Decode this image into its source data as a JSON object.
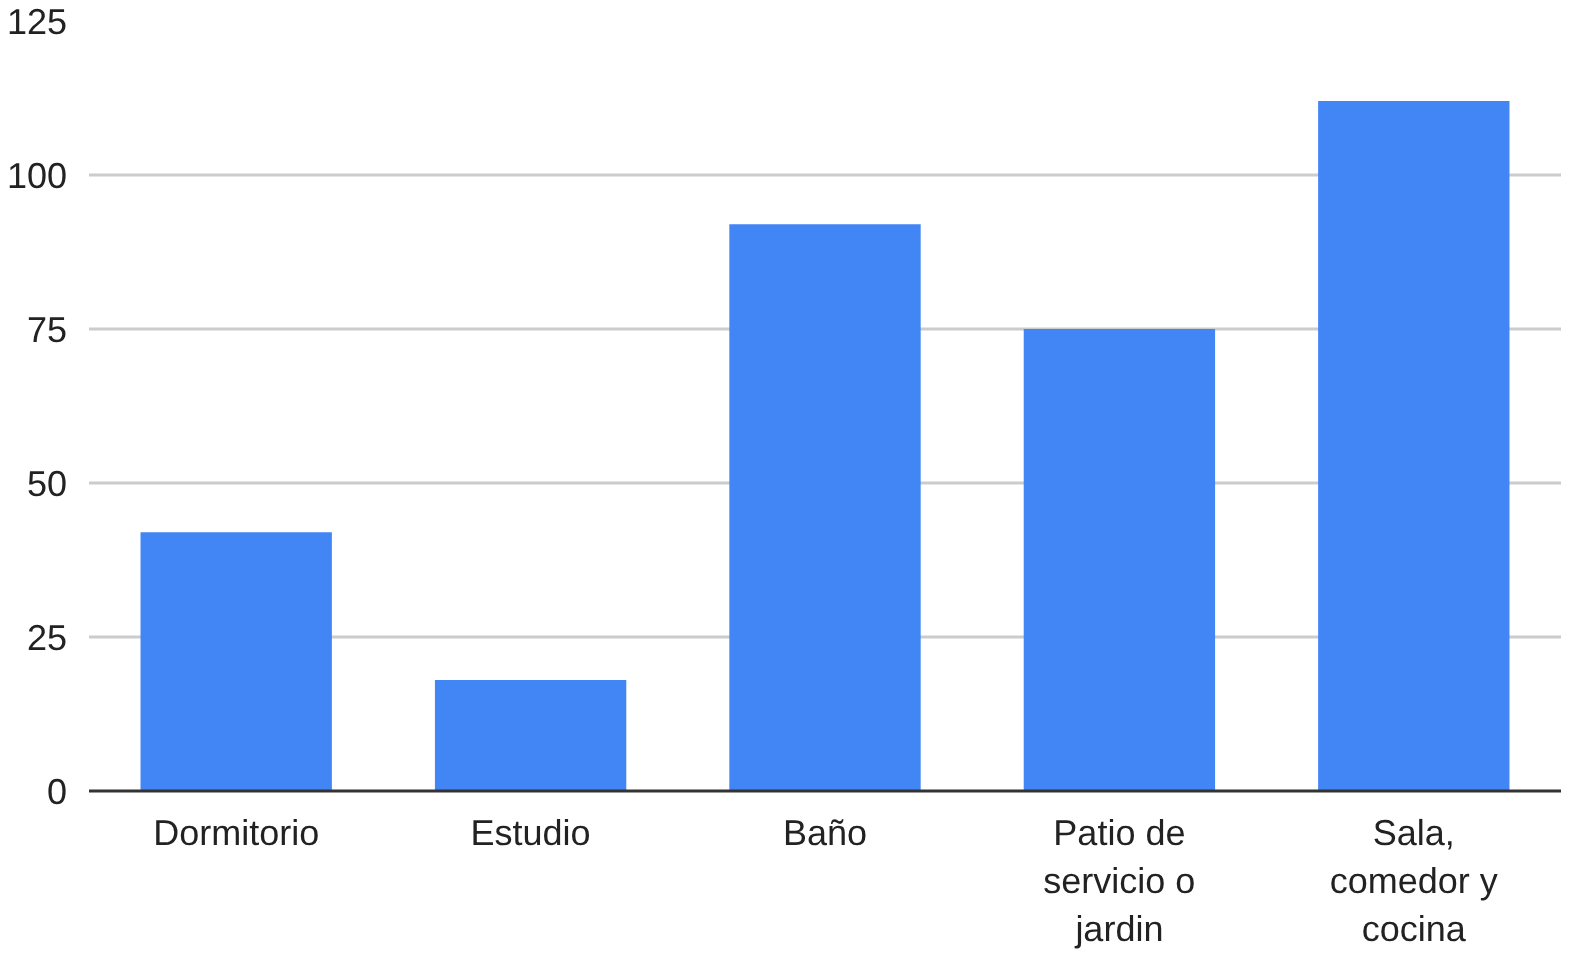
{
  "chart_data": {
    "type": "bar",
    "categories": [
      "Dormitorio",
      "Estudio",
      "Baño",
      "Patio de servicio o jardin",
      "Sala, comedor y cocina"
    ],
    "values": [
      42,
      18,
      92,
      75,
      112
    ],
    "color": "#4285f4",
    "ylim": [
      0,
      125
    ],
    "yticks": [
      0,
      25,
      50,
      75,
      100,
      125
    ],
    "grid": "y"
  }
}
